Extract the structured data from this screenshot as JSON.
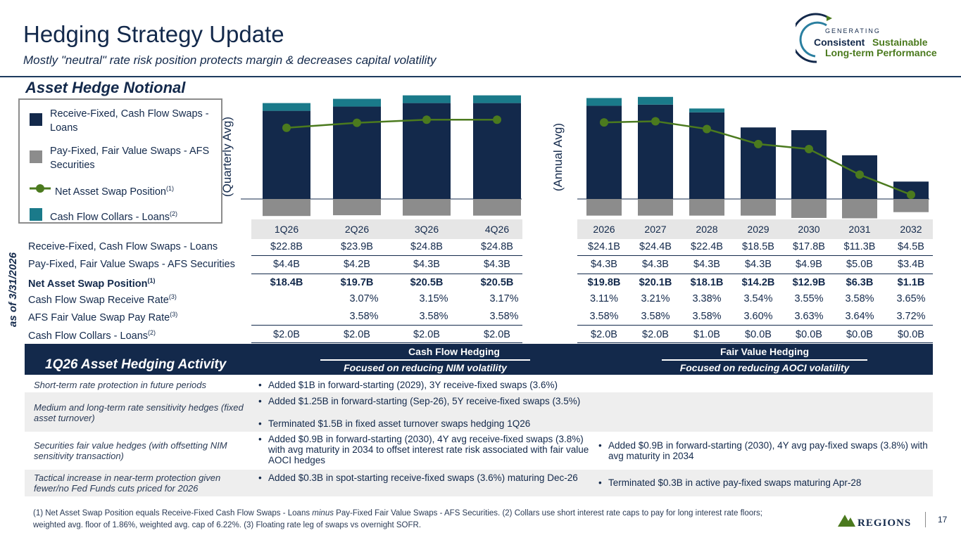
{
  "header": {
    "title": "Hedging Strategy Update",
    "subtitle": "Mostly \"neutral\" rate risk position protects margin & decreases capital volatility",
    "section_title": "Asset Hedge Notional"
  },
  "brand": {
    "line1": "GENERATING",
    "line2a": "Consistent",
    "line2b": "Sustainable",
    "line3": "Long-term Performance",
    "company": "REGIONS",
    "page_number": "17"
  },
  "legend": {
    "items": [
      {
        "label": "Receive-Fixed, Cash Flow Swaps - Loans",
        "sup": ""
      },
      {
        "label": "Pay-Fixed, Fair Value Swaps - AFS Securities",
        "sup": ""
      },
      {
        "label": "Net Asset Swap Position",
        "sup": "(1)"
      },
      {
        "label": "Cash Flow Collars - Loans",
        "sup": "(2)"
      }
    ]
  },
  "colors": {
    "receive_fixed": "#13294b",
    "pay_fixed": "#8c8c8c",
    "net_position": "#4b7a1e",
    "collars": "#1a7a8a",
    "header_band": "#e6e6e6"
  },
  "axis_labels": {
    "quarterly": "(Quarterly Avg)",
    "annual": "(Annual Avg)",
    "as_of": "as of 3/31/2026"
  },
  "chart_data": [
    {
      "type": "bar",
      "categories": [
        "1Q26",
        "2Q26",
        "3Q26",
        "4Q26"
      ],
      "series": [
        {
          "name": "Receive-Fixed, Cash Flow Swaps - Loans",
          "values": [
            22.8,
            23.9,
            24.8,
            24.8
          ]
        },
        {
          "name": "Pay-Fixed, Fair Value Swaps - AFS Securities",
          "values": [
            -4.4,
            -4.2,
            -4.3,
            -4.3
          ]
        },
        {
          "name": "Net Asset Swap Position",
          "values": [
            18.4,
            19.7,
            20.5,
            20.5
          ]
        },
        {
          "name": "Cash Flow Collars - Loans",
          "values": [
            2.0,
            2.0,
            2.0,
            2.0
          ]
        }
      ]
    },
    {
      "type": "bar",
      "categories": [
        "2026",
        "2027",
        "2028",
        "2029",
        "2030",
        "2031",
        "2032"
      ],
      "series": [
        {
          "name": "Receive-Fixed, Cash Flow Swaps - Loans",
          "values": [
            24.1,
            24.4,
            22.4,
            18.5,
            17.8,
            11.3,
            4.5
          ]
        },
        {
          "name": "Pay-Fixed, Fair Value Swaps - AFS Securities",
          "values": [
            -4.3,
            -4.3,
            -4.3,
            -4.3,
            -4.9,
            -5.0,
            -3.4
          ]
        },
        {
          "name": "Net Asset Swap Position",
          "values": [
            19.8,
            20.1,
            18.1,
            14.2,
            12.9,
            6.3,
            1.1
          ]
        },
        {
          "name": "Cash Flow Collars - Loans",
          "values": [
            2.0,
            2.0,
            1.0,
            0.0,
            0.0,
            0.0,
            0.0
          ]
        }
      ]
    }
  ],
  "table": {
    "row_labels": [
      {
        "label": "Receive-Fixed, Cash Flow Swaps - Loans",
        "sup": ""
      },
      {
        "label": "Pay-Fixed, Fair Value Swaps - AFS Securities",
        "sup": ""
      },
      {
        "label": "Net Asset Swap Position",
        "sup": "(1)"
      },
      {
        "label": "Cash Flow Swap Receive Rate",
        "sup": "(3)"
      },
      {
        "label": "AFS Fair Value Swap Pay Rate",
        "sup": "(3)"
      },
      {
        "label": "Cash Flow Collars - Loans",
        "sup": "(2)"
      }
    ],
    "quarterly": [
      [
        "$22.8B",
        "$23.9B",
        "$24.8B",
        "$24.8B"
      ],
      [
        "$4.4B",
        "$4.2B",
        "$4.3B",
        "$4.3B"
      ],
      [
        "$18.4B",
        "$19.7B",
        "$20.5B",
        "$20.5B"
      ],
      [
        "",
        "3.07%",
        "3.15%",
        "3.17%"
      ],
      [
        "",
        "3.58%",
        "3.58%",
        "3.58%"
      ],
      [
        "$2.0B",
        "$2.0B",
        "$2.0B",
        "$2.0B"
      ]
    ],
    "annual": [
      [
        "$24.1B",
        "$24.4B",
        "$22.4B",
        "$18.5B",
        "$17.8B",
        "$11.3B",
        "$4.5B"
      ],
      [
        "$4.3B",
        "$4.3B",
        "$4.3B",
        "$4.3B",
        "$4.9B",
        "$5.0B",
        "$3.4B"
      ],
      [
        "$19.8B",
        "$20.1B",
        "$18.1B",
        "$14.2B",
        "$12.9B",
        "$6.3B",
        "$1.1B"
      ],
      [
        "3.11%",
        "3.21%",
        "3.38%",
        "3.54%",
        "3.55%",
        "3.58%",
        "3.65%"
      ],
      [
        "3.58%",
        "3.58%",
        "3.58%",
        "3.60%",
        "3.63%",
        "3.64%",
        "3.72%"
      ],
      [
        "$2.0B",
        "$2.0B",
        "$1.0B",
        "$0.0B",
        "$0.0B",
        "$0.0B",
        "$0.0B"
      ]
    ]
  },
  "activity": {
    "title": "1Q26 Asset Hedging Activity",
    "cf_heading": "Cash Flow Hedging",
    "cf_sub": "Focused on reducing NIM volatility",
    "fv_heading": "Fair Value Hedging",
    "fv_sub": "Focused on reducing AOCI volatility",
    "rows": [
      {
        "label": "Short-term rate protection in future periods",
        "cf": [
          "Added $1B in forward-starting (2029), 3Y receive-fixed swaps (3.6%)"
        ],
        "fv": []
      },
      {
        "label": "Medium and long-term rate sensitivity hedges (fixed asset turnover)",
        "cf": [
          "Added $1.25B in forward-starting (Sep-26), 5Y receive-fixed swaps (3.5%)",
          "Terminated $1.5B in fixed asset turnover swaps hedging 1Q26"
        ],
        "fv": []
      },
      {
        "label": "Securities fair value hedges (with offsetting NIM sensitivity transaction)",
        "cf": [
          "Added $0.9B in forward-starting (2030), 4Y avg receive-fixed swaps (3.8%) with avg maturity in 2034 to offset interest rate risk associated with fair value AOCI hedges"
        ],
        "fv": [
          "Added $0.9B in forward-starting (2030), 4Y avg pay-fixed swaps (3.8%) with avg maturity in 2034"
        ]
      },
      {
        "label": "Tactical increase in near-term protection given fewer/no Fed Funds cuts priced for 2026",
        "cf": [
          "Added $0.3B in spot-starting receive-fixed swaps (3.6%) maturing Dec-26"
        ],
        "fv": [
          "Terminated $0.3B in active pay-fixed swaps maturing Apr-28"
        ]
      }
    ]
  },
  "footnote": {
    "part1": "(1) Net Asset Swap Position equals Receive-Fixed Cash Flow Swaps - Loans ",
    "italic": "minus",
    "part2": " Pay-Fixed Fair Value Swaps - AFS Securities.  (2) Collars use short interest rate caps to pay for long interest rate floors; weighted avg. floor of 1.86%, weighted avg. cap of 6.22%. (3) Floating rate leg of swaps vs overnight SOFR."
  }
}
